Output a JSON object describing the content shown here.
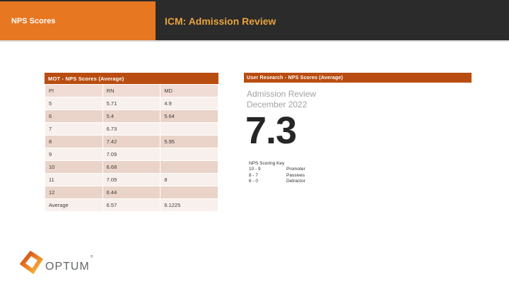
{
  "header": {
    "tab_label": "NPS Scores",
    "title": "ICM: Admission Review"
  },
  "left_panel": {
    "title": "MOT - NPS Scores (Average)",
    "table": {
      "columns": [
        "PI",
        "RN",
        "MD"
      ],
      "rows": [
        [
          "5",
          "5.71",
          "4.9"
        ],
        [
          "6",
          "5.4",
          "5.64"
        ],
        [
          "7",
          "6.73",
          ""
        ],
        [
          "8",
          "7.42",
          "5.95"
        ],
        [
          "9",
          "7.09",
          ""
        ],
        [
          "10",
          "6.68",
          ""
        ],
        [
          "11",
          "7.09",
          "8"
        ],
        [
          "12",
          "6.44",
          ""
        ],
        [
          "Average",
          "6.57",
          "6.1225"
        ]
      ]
    }
  },
  "right_panel": {
    "title": "User Research - NPS Scores (Average)",
    "subtitle_line1": "Admission Review",
    "subtitle_line2": "December 2022",
    "score": "7.3",
    "scoring_key": {
      "title": "NPS Scoring Key",
      "entries": [
        {
          "range": "10 - 9",
          "label": "Promoter"
        },
        {
          "range": "8 - 7",
          "label": "Passives"
        },
        {
          "range": "6 - 0",
          "label": "Detractor"
        }
      ]
    }
  },
  "footer": {
    "logo_text": "OPTUM",
    "registered_mark": "®"
  },
  "chart_data": {
    "type": "table",
    "title": "MOT - NPS Scores (Average)",
    "categories": [
      "5",
      "6",
      "7",
      "8",
      "9",
      "10",
      "11",
      "12",
      "Average"
    ],
    "series": [
      {
        "name": "RN",
        "values": [
          5.71,
          5.4,
          6.73,
          7.42,
          7.09,
          6.68,
          7.09,
          6.44,
          6.57
        ]
      },
      {
        "name": "MD",
        "values": [
          4.9,
          5.64,
          null,
          5.95,
          null,
          null,
          8,
          null,
          6.1225
        ]
      }
    ],
    "overall_nps_score": 7.3
  },
  "colors": {
    "brand_orange": "#e87722",
    "dark_bar": "#2b2b2b",
    "gold": "#e8a33d",
    "rust": "#b94d11",
    "band_header": "#f0dcd4",
    "band_light": "#f8f0ec",
    "band_dark": "#ead3c9",
    "text_dark": "#3c3c3c",
    "gray_subtitle": "#a6a2a0",
    "score_dark": "#262626",
    "key_dark": "#2f2f2f",
    "logo_gray": "#63666a"
  }
}
